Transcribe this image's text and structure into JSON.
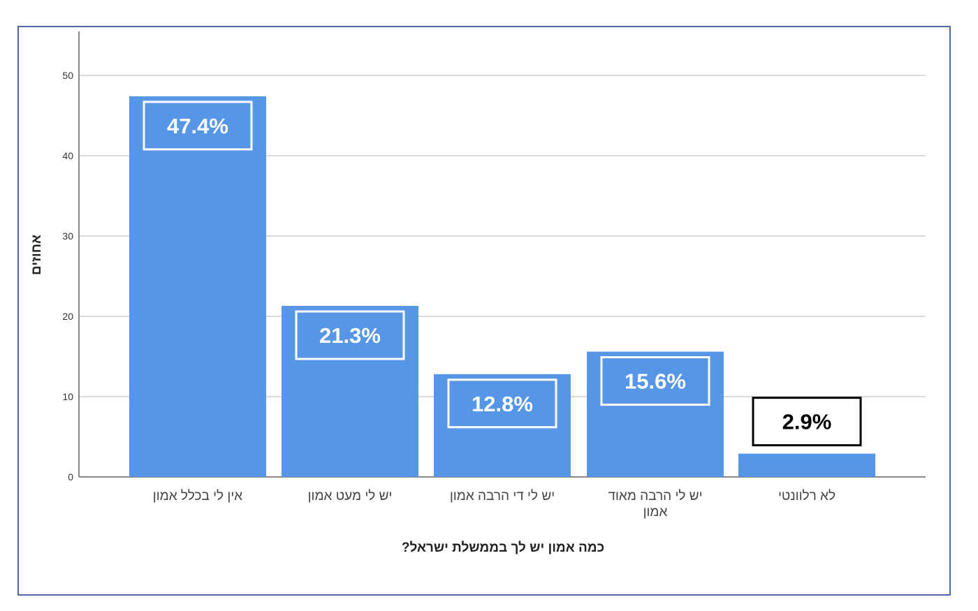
{
  "chart_data": {
    "type": "bar",
    "title": "",
    "xlabel": "כמה אמון יש לך בממשלת ישראל?",
    "ylabel": "אחוזים",
    "categories": [
      [
        "אין לי בכלל אמון"
      ],
      [
        "יש לי מעט אמון"
      ],
      [
        "יש לי די הרבה אמון"
      ],
      [
        "יש לי הרבה מאוד",
        "אמון"
      ],
      [
        "לא רלוונטי"
      ]
    ],
    "values": [
      47.4,
      21.3,
      12.8,
      15.6,
      2.9
    ],
    "data_labels": [
      "47.4%",
      "21.3%",
      "12.8%",
      "15.6%",
      "2.9%"
    ],
    "ylim": [
      0,
      55
    ],
    "yticks": [
      0,
      10,
      20,
      30,
      40,
      50
    ],
    "grid": true,
    "colors": {
      "bar": "#5596e6",
      "grid": "#d9d9d9",
      "axis": "#888888",
      "label_text_inside": "#ffffff",
      "label_text_outside": "#000000",
      "frame": "#4a6aa5"
    }
  }
}
